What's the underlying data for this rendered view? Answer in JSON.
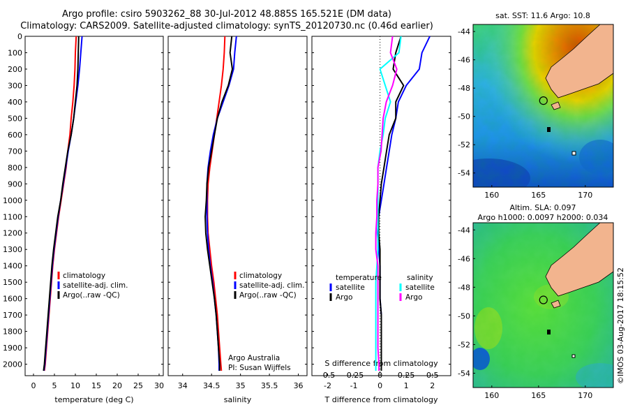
{
  "header": {
    "line1": "Argo profile: csiro 5903262_88 30-Jul-2012 48.885S 165.521E (DM data)",
    "line2": "Climatology: CARS2009. Satellite-adjusted climatology: synTS_20120730.nc (0.46d earlier)"
  },
  "colors": {
    "climatology": "#ff0000",
    "satellite": "#0000ff",
    "argo": "#000000",
    "satellite_s": "#00ffff",
    "argo_s": "#ff00ff",
    "land": "#f2b48e"
  },
  "depth_ticks": [
    "0",
    "100",
    "200",
    "300",
    "400",
    "500",
    "600",
    "700",
    "800",
    "900",
    "1000",
    "1100",
    "1200",
    "1300",
    "1400",
    "1500",
    "1600",
    "1700",
    "1800",
    "1900",
    "2000"
  ],
  "chart_data": [
    {
      "type": "line",
      "xlabel": "temperature (deg C)",
      "xlim": [
        -2,
        31
      ],
      "ylim": [
        2070,
        0
      ],
      "xticks": [
        "0",
        "5",
        "10",
        "15",
        "20",
        "25",
        "30"
      ],
      "legend": [
        "climatology",
        "satellite-adj. clim.",
        "Argo(..raw -QC)"
      ],
      "series": [
        {
          "name": "climatology",
          "x": [
            10.2,
            10.0,
            9.9,
            9.7,
            9.4,
            9.0,
            8.7,
            8.2,
            7.8,
            7.2,
            6.6,
            6.0,
            5.5,
            5.0,
            4.6,
            4.3,
            4.0,
            3.7,
            3.4,
            3.1,
            2.8,
            2.6
          ],
          "y": [
            0,
            100,
            200,
            300,
            400,
            500,
            600,
            700,
            800,
            900,
            1000,
            1100,
            1200,
            1300,
            1400,
            1500,
            1600,
            1700,
            1800,
            1900,
            2000,
            2040
          ]
        },
        {
          "name": "satellite-adj. clim.",
          "x": [
            11.6,
            11.3,
            11.0,
            10.6,
            10.1,
            9.6,
            9.0,
            8.3,
            7.7,
            7.1,
            6.5,
            5.9,
            5.4,
            4.9,
            4.5,
            4.2,
            3.9,
            3.6,
            3.3,
            3.0,
            2.7,
            2.5
          ],
          "y": [
            0,
            100,
            200,
            300,
            400,
            500,
            600,
            700,
            800,
            900,
            1000,
            1100,
            1200,
            1300,
            1400,
            1500,
            1600,
            1700,
            1800,
            1900,
            2000,
            2040
          ]
        },
        {
          "name": "Argo(..raw -QC)",
          "x": [
            10.8,
            10.7,
            10.6,
            10.4,
            10.0,
            9.6,
            9.0,
            8.2,
            7.6,
            7.0,
            6.5,
            5.8,
            5.3,
            4.8,
            4.4,
            4.1,
            3.8,
            3.5,
            3.2,
            2.9,
            2.6,
            2.4
          ],
          "y": [
            0,
            100,
            200,
            300,
            400,
            500,
            600,
            700,
            800,
            900,
            1000,
            1100,
            1200,
            1300,
            1400,
            1500,
            1600,
            1700,
            1800,
            1900,
            2000,
            2040
          ]
        }
      ]
    },
    {
      "type": "line",
      "xlabel": "salinity",
      "xlim": [
        33.75,
        36.15
      ],
      "ylim": [
        2070,
        0
      ],
      "xticks": [
        "34",
        "34.5",
        "35",
        "35.5",
        "36"
      ],
      "legend": [
        "climatology",
        "satellite-adj. clim.",
        "Argo(..raw -QC)"
      ],
      "annotation": [
        "Argo Australia",
        "PI: Susan Wijffels"
      ],
      "series": [
        {
          "name": "climatology",
          "x": [
            34.73,
            34.72,
            34.7,
            34.67,
            34.63,
            34.59,
            34.55,
            34.51,
            34.47,
            34.44,
            34.43,
            34.43,
            34.44,
            34.47,
            34.5,
            34.54,
            34.57,
            34.6,
            34.62,
            34.64,
            34.66,
            34.67
          ],
          "y": [
            0,
            100,
            200,
            300,
            400,
            500,
            600,
            700,
            800,
            900,
            1000,
            1100,
            1200,
            1300,
            1400,
            1500,
            1600,
            1700,
            1800,
            1900,
            2000,
            2040
          ]
        },
        {
          "name": "satellite-adj. clim.",
          "x": [
            34.93,
            34.9,
            34.88,
            34.8,
            34.7,
            34.6,
            34.53,
            34.48,
            34.44,
            34.42,
            34.42,
            34.42,
            34.43,
            34.45,
            34.48,
            34.52,
            34.55,
            34.58,
            34.6,
            34.62,
            34.63,
            34.63
          ],
          "y": [
            0,
            100,
            200,
            300,
            400,
            500,
            600,
            700,
            800,
            900,
            1000,
            1100,
            1200,
            1300,
            1400,
            1500,
            1600,
            1700,
            1800,
            1900,
            2000,
            2040
          ]
        },
        {
          "name": "Argo(..raw -QC)",
          "x": [
            34.85,
            34.82,
            34.86,
            34.79,
            34.68,
            34.6,
            34.55,
            34.5,
            34.45,
            34.42,
            34.41,
            34.39,
            34.4,
            34.43,
            34.47,
            34.51,
            34.55,
            34.58,
            34.6,
            34.62,
            34.64,
            34.64
          ],
          "y": [
            0,
            100,
            200,
            300,
            400,
            500,
            600,
            700,
            800,
            900,
            1000,
            1100,
            1200,
            1300,
            1400,
            1500,
            1600,
            1700,
            1800,
            1900,
            2000,
            2040
          ]
        }
      ]
    },
    {
      "type": "line",
      "xlabel": "T difference from climatology",
      "xlabel_top": "S difference from climatology",
      "xlim": [
        -2.6,
        2.7
      ],
      "ylim": [
        2070,
        0
      ],
      "xticks": [
        "-2",
        "-1",
        "0",
        "1",
        "2"
      ],
      "xticks_top": [
        "-0.5",
        "-0.25",
        "0",
        "0.25",
        "0.5"
      ],
      "legend_left": {
        "title": "temperature",
        "items": [
          "satellite",
          "Argo"
        ]
      },
      "legend_right": {
        "title": "salinity",
        "items": [
          "satellite",
          "Argo"
        ]
      },
      "series": [
        {
          "name": "satellite",
          "x": [
            1.9,
            1.6,
            1.5,
            1.0,
            0.7,
            0.6,
            0.45,
            0.35,
            0.25,
            0.15,
            0.05,
            -0.05,
            -0.1,
            -0.05,
            0.0,
            0.0,
            0.0,
            0.05,
            0.05,
            0.05,
            0.05,
            0.05
          ],
          "y": [
            0,
            100,
            200,
            300,
            400,
            500,
            600,
            700,
            800,
            900,
            1000,
            1100,
            1200,
            1300,
            1400,
            1500,
            1600,
            1700,
            1800,
            1900,
            2000,
            2040
          ]
        },
        {
          "name": "Argo",
          "x": [
            0.8,
            0.6,
            0.5,
            0.9,
            0.6,
            0.6,
            0.35,
            0.25,
            0.15,
            0.05,
            0.0,
            -0.05,
            -0.05,
            0.0,
            0.0,
            0.0,
            0.0,
            0.05,
            0.05,
            0.05,
            0.05,
            0.05
          ],
          "y": [
            0,
            100,
            200,
            300,
            400,
            500,
            600,
            700,
            800,
            900,
            1000,
            1100,
            1200,
            1300,
            1400,
            1500,
            1600,
            1700,
            1800,
            1900,
            2000,
            2040
          ]
        },
        {
          "name": "satellite",
          "x": [
            0.2,
            0.18,
            0.0,
            0.05,
            0.1,
            0.05,
            0.03,
            0.0,
            -0.02,
            -0.02,
            -0.02,
            -0.02,
            -0.02,
            -0.02,
            -0.03,
            -0.04,
            -0.04,
            -0.04,
            -0.04,
            -0.04,
            -0.04,
            -0.04
          ],
          "y": [
            0,
            100,
            200,
            300,
            400,
            500,
            600,
            700,
            800,
            900,
            1000,
            1100,
            1200,
            1300,
            1400,
            1500,
            1600,
            1700,
            1800,
            1900,
            2000,
            2040
          ]
        },
        {
          "name": "Argo",
          "x": [
            0.12,
            0.1,
            0.16,
            0.12,
            0.06,
            0.03,
            0.02,
            0.01,
            -0.02,
            -0.02,
            -0.03,
            -0.03,
            -0.04,
            -0.04,
            -0.02,
            -0.02,
            -0.02,
            -0.02,
            -0.02,
            -0.02,
            -0.01,
            -0.01
          ],
          "y": [
            0,
            100,
            200,
            300,
            400,
            500,
            600,
            700,
            800,
            900,
            1000,
            1100,
            1200,
            1300,
            1400,
            1500,
            1600,
            1700,
            1800,
            1900,
            2000,
            2040
          ]
        }
      ]
    },
    {
      "type": "heatmap",
      "title": "sat. SST: 11.6 Argo: 10.8",
      "xlim": [
        158,
        173
      ],
      "ylim": [
        -55,
        -43.5
      ],
      "xticks": [
        "160",
        "165",
        "170"
      ],
      "yticks": [
        "-44",
        "-46",
        "-48",
        "-50",
        "-52",
        "-54"
      ],
      "argo_position": {
        "lon": 165.521,
        "lat": -48.885
      }
    },
    {
      "type": "heatmap",
      "title": "Altim. SLA: 0.097",
      "subtitle": "Argo h1000: 0.0097 h2000: 0.034",
      "xlim": [
        158,
        173
      ],
      "ylim": [
        -55,
        -43.5
      ],
      "xticks": [
        "160",
        "165",
        "170"
      ],
      "yticks": [
        "-44",
        "-46",
        "-48",
        "-50",
        "-52",
        "-54"
      ],
      "argo_position": {
        "lon": 165.521,
        "lat": -48.885
      }
    }
  ],
  "footer": {
    "stamp": "©IMOS 03-Aug-2017 18:15:52"
  }
}
